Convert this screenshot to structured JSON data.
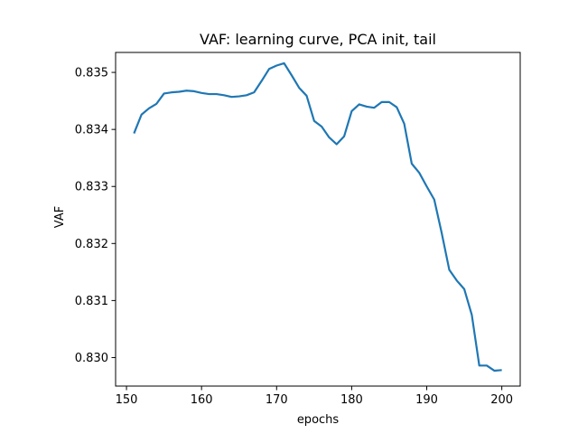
{
  "chart_data": {
    "type": "line",
    "title": "VAF: learning curve, PCA init, tail",
    "xlabel": "epochs",
    "ylabel": "VAF",
    "xlim": [
      148.55,
      202.45
    ],
    "ylim": [
      0.8295,
      0.83535
    ],
    "xticks": [
      150,
      160,
      170,
      180,
      190,
      200
    ],
    "xtick_labels": [
      "150",
      "160",
      "170",
      "180",
      "190",
      "200"
    ],
    "yticks": [
      0.83,
      0.831,
      0.832,
      0.833,
      0.834,
      0.835
    ],
    "ytick_labels": [
      "0.830",
      "0.831",
      "0.832",
      "0.833",
      "0.834",
      "0.835"
    ],
    "grid": false,
    "series": [
      {
        "name": "VAF",
        "color": "#1f77b4",
        "x": [
          151,
          152,
          153,
          154,
          155,
          156,
          157,
          158,
          159,
          160,
          161,
          162,
          163,
          164,
          165,
          166,
          167,
          168,
          169,
          170,
          171,
          172,
          173,
          174,
          175,
          176,
          177,
          178,
          179,
          180,
          181,
          182,
          183,
          184,
          185,
          186,
          187,
          188,
          189,
          190,
          191,
          192,
          193,
          194,
          195,
          196,
          197,
          198,
          199,
          200
        ],
        "values": [
          0.83393,
          0.83426,
          0.83437,
          0.83445,
          0.83463,
          0.83465,
          0.83466,
          0.83468,
          0.83467,
          0.83464,
          0.83462,
          0.83462,
          0.8346,
          0.83457,
          0.83458,
          0.8346,
          0.83465,
          0.83485,
          0.83506,
          0.83512,
          0.83516,
          0.83495,
          0.83473,
          0.83459,
          0.83415,
          0.83405,
          0.83386,
          0.83374,
          0.83388,
          0.83432,
          0.83444,
          0.8344,
          0.83438,
          0.83448,
          0.83448,
          0.83439,
          0.8341,
          0.8334,
          0.83324,
          0.833,
          0.83277,
          0.83218,
          0.83154,
          0.83135,
          0.8312,
          0.83075,
          0.82986,
          0.82986,
          0.82977,
          0.82978
        ]
      }
    ]
  }
}
